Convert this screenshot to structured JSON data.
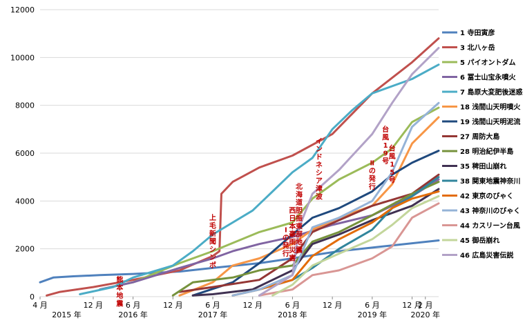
{
  "chart_data": {
    "type": "line",
    "ylim": [
      0,
      12000
    ],
    "yticks": [
      0,
      2000,
      4000,
      6000,
      8000,
      10000,
      12000
    ],
    "xlim": [
      "2015-04",
      "2020-04"
    ],
    "x_tick_labels": [
      {
        "x": "2015-04",
        "label": "4 月"
      },
      {
        "x": "2015-12",
        "label": "12 月"
      },
      {
        "x": "2016-06",
        "label": "6 月"
      },
      {
        "x": "2016-12",
        "label": "12 月"
      },
      {
        "x": "2017-06",
        "label": "6 月"
      },
      {
        "x": "2017-12",
        "label": "12 月"
      },
      {
        "x": "2018-06",
        "label": "6 月"
      },
      {
        "x": "2018-12",
        "label": "12 月"
      },
      {
        "x": "2019-06",
        "label": "6 月"
      },
      {
        "x": "2019-12",
        "label": "12 月"
      },
      {
        "x": "2020-02",
        "label": "2 月"
      }
    ],
    "year_labels": [
      {
        "x": "2015-08",
        "label": "2015 年"
      },
      {
        "x": "2016-06",
        "label": "2016 年"
      },
      {
        "x": "2017-06",
        "label": "2017 年"
      },
      {
        "x": "2018-06",
        "label": "2018 年"
      },
      {
        "x": "2019-06",
        "label": "2019 年"
      },
      {
        "x": "2020-02",
        "label": "2020 年"
      }
    ],
    "grid": "horizontal",
    "legend": "right",
    "series": [
      {
        "name": "1 寺田寅彦",
        "color": "#4f81bd",
        "points": [
          [
            "2015-04",
            600
          ],
          [
            "2015-06",
            800
          ],
          [
            "2015-09",
            850
          ],
          [
            "2016-01",
            900
          ],
          [
            "2016-06",
            950
          ],
          [
            "2017-01",
            1050
          ],
          [
            "2017-06",
            1200
          ],
          [
            "2018-01",
            1400
          ],
          [
            "2018-06",
            1600
          ],
          [
            "2019-01",
            1900
          ],
          [
            "2019-06",
            2050
          ],
          [
            "2020-04",
            2350
          ]
        ]
      },
      {
        "name": "3 北八ヶ岳",
        "color": "#c0504d",
        "points": [
          [
            "2015-05",
            50
          ],
          [
            "2015-07",
            200
          ],
          [
            "2015-12",
            400
          ],
          [
            "2016-06",
            700
          ],
          [
            "2017-01",
            1100
          ],
          [
            "2017-06",
            1700
          ],
          [
            "2017-07",
            1900
          ],
          [
            "2017-07.3",
            4300
          ],
          [
            "2017-09",
            4800
          ],
          [
            "2018-01",
            5400
          ],
          [
            "2018-06",
            5900
          ],
          [
            "2018-12",
            6800
          ],
          [
            "2019-06",
            8500
          ],
          [
            "2019-12",
            9800
          ],
          [
            "2020-04",
            10800
          ]
        ]
      },
      {
        "name": "5 パイオントダム",
        "color": "#9bbb59",
        "points": [
          [
            "2016-01",
            300
          ],
          [
            "2016-06",
            600
          ],
          [
            "2017-01",
            1400
          ],
          [
            "2017-06",
            1900
          ],
          [
            "2018-01",
            2700
          ],
          [
            "2018-06",
            3100
          ],
          [
            "2018-09",
            4100
          ],
          [
            "2019-01",
            4900
          ],
          [
            "2019-06",
            5600
          ],
          [
            "2019-09",
            6200
          ],
          [
            "2019-12",
            7300
          ],
          [
            "2020-04",
            7900
          ]
        ]
      },
      {
        "name": "6 冨士山宝永噴火",
        "color": "#8064a2",
        "points": [
          [
            "2016-01",
            300
          ],
          [
            "2016-06",
            600
          ],
          [
            "2017-01",
            1200
          ],
          [
            "2017-06",
            1600
          ],
          [
            "2017-09",
            1900
          ],
          [
            "2018-01",
            2200
          ],
          [
            "2018-06",
            2500
          ],
          [
            "2018-12",
            3000
          ],
          [
            "2019-06",
            3400
          ],
          [
            "2019-12",
            4200
          ],
          [
            "2020-04",
            4900
          ]
        ]
      },
      {
        "name": "7 島原大変肥後迷惑",
        "color": "#4bacc6",
        "points": [
          [
            "2015-10",
            100
          ],
          [
            "2016-03",
            400
          ],
          [
            "2016-06",
            800
          ],
          [
            "2016-12",
            1300
          ],
          [
            "2017-03",
            1900
          ],
          [
            "2017-06",
            2600
          ],
          [
            "2017-12",
            3600
          ],
          [
            "2018-03",
            4400
          ],
          [
            "2018-06",
            5200
          ],
          [
            "2018-09",
            5800
          ],
          [
            "2018-12",
            7000
          ],
          [
            "2019-03",
            7800
          ],
          [
            "2019-06",
            8500
          ],
          [
            "2019-12",
            9100
          ],
          [
            "2020-04",
            9700
          ]
        ]
      },
      {
        "name": "18 浅間山天明噴火",
        "color": "#f79646",
        "points": [
          [
            "2017-01",
            50
          ],
          [
            "2017-06",
            600
          ],
          [
            "2017-09",
            1300
          ],
          [
            "2018-01",
            1600
          ],
          [
            "2018-06",
            2200
          ],
          [
            "2018-09",
            2800
          ],
          [
            "2019-01",
            3300
          ],
          [
            "2019-06",
            3800
          ],
          [
            "2019-09",
            4700
          ],
          [
            "2019-12",
            6400
          ],
          [
            "2020-04",
            7500
          ]
        ]
      },
      {
        "name": "19 浅間山天明泥流",
        "color": "#1f497d",
        "points": [
          [
            "2017-03",
            50
          ],
          [
            "2017-09",
            600
          ],
          [
            "2018-01",
            1400
          ],
          [
            "2018-06",
            2600
          ],
          [
            "2018-09",
            3300
          ],
          [
            "2019-01",
            3700
          ],
          [
            "2019-06",
            4400
          ],
          [
            "2019-09",
            5100
          ],
          [
            "2019-12",
            5600
          ],
          [
            "2020-04",
            6100
          ]
        ]
      },
      {
        "name": "27 周防大島",
        "color": "#943634",
        "points": [
          [
            "2017-01",
            200
          ],
          [
            "2017-06",
            400
          ],
          [
            "2018-01",
            700
          ],
          [
            "2018-06",
            1600
          ],
          [
            "2018-09",
            2700
          ],
          [
            "2019-01",
            3200
          ],
          [
            "2019-06",
            3800
          ],
          [
            "2019-12",
            4300
          ],
          [
            "2020-04",
            5100
          ]
        ]
      },
      {
        "name": "28 明治紀伊半島",
        "color": "#76923c",
        "points": [
          [
            "2016-12",
            50
          ],
          [
            "2017-03",
            600
          ],
          [
            "2017-09",
            800
          ],
          [
            "2018-01",
            1100
          ],
          [
            "2018-06",
            1300
          ],
          [
            "2018-09",
            2300
          ],
          [
            "2019-01",
            2700
          ],
          [
            "2019-06",
            3400
          ],
          [
            "2019-12",
            4300
          ],
          [
            "2020-04",
            4800
          ]
        ]
      },
      {
        "name": "35 稗田山崩れ",
        "color": "#403152",
        "points": [
          [
            "2017-03",
            50
          ],
          [
            "2017-06",
            100
          ],
          [
            "2017-12",
            300
          ],
          [
            "2018-06",
            1100
          ],
          [
            "2018-09",
            2200
          ],
          [
            "2019-01",
            2600
          ],
          [
            "2019-06",
            3200
          ],
          [
            "2019-12",
            3800
          ],
          [
            "2020-04",
            4500
          ]
        ]
      },
      {
        "name": "38 関東地震神奈川",
        "color": "#31859c",
        "points": [
          [
            "2017-09",
            50
          ],
          [
            "2018-01",
            300
          ],
          [
            "2018-06",
            700
          ],
          [
            "2018-09",
            1200
          ],
          [
            "2019-01",
            2000
          ],
          [
            "2019-06",
            2800
          ],
          [
            "2019-09",
            3700
          ],
          [
            "2019-12",
            4200
          ],
          [
            "2020-04",
            5000
          ]
        ]
      },
      {
        "name": "42 東京のびゃく",
        "color": "#e36c09",
        "points": [
          [
            "2017-09",
            50
          ],
          [
            "2018-01",
            300
          ],
          [
            "2018-06",
            700
          ],
          [
            "2018-09",
            1700
          ],
          [
            "2019-01",
            2400
          ],
          [
            "2019-06",
            3100
          ],
          [
            "2019-09",
            3700
          ],
          [
            "2019-12",
            4100
          ],
          [
            "2020-04",
            4400
          ]
        ]
      },
      {
        "name": "43 神奈川のびゃく",
        "color": "#95b3d7",
        "points": [
          [
            "2017-09",
            50
          ],
          [
            "2018-01",
            300
          ],
          [
            "2018-06",
            900
          ],
          [
            "2018-09",
            2900
          ],
          [
            "2019-01",
            3300
          ],
          [
            "2019-06",
            4000
          ],
          [
            "2019-09",
            5200
          ],
          [
            "2019-12",
            7100
          ],
          [
            "2020-04",
            8100
          ]
        ]
      },
      {
        "name": "44 カスリーン台風",
        "color": "#d99694",
        "points": [
          [
            "2018-01",
            50
          ],
          [
            "2018-06",
            300
          ],
          [
            "2018-09",
            900
          ],
          [
            "2019-01",
            1100
          ],
          [
            "2019-06",
            1600
          ],
          [
            "2019-09",
            2100
          ],
          [
            "2019-12",
            3300
          ],
          [
            "2020-04",
            3900
          ]
        ]
      },
      {
        "name": "45 御岳崩れ",
        "color": "#c3d69b",
        "points": [
          [
            "2018-03",
            50
          ],
          [
            "2018-06",
            500
          ],
          [
            "2018-09",
            1300
          ],
          [
            "2019-01",
            1800
          ],
          [
            "2019-06",
            2400
          ],
          [
            "2019-09",
            3000
          ],
          [
            "2019-12",
            3700
          ],
          [
            "2020-04",
            4200
          ]
        ]
      },
      {
        "name": "46 広島災害伝説",
        "color": "#b2a2c7",
        "points": [
          [
            "2018-01",
            50
          ],
          [
            "2018-06",
            900
          ],
          [
            "2018-07",
            2900
          ],
          [
            "2018-09",
            4300
          ],
          [
            "2019-01",
            5300
          ],
          [
            "2019-06",
            6800
          ],
          [
            "2019-09",
            8100
          ],
          [
            "2019-12",
            9300
          ],
          [
            "2020-04",
            10400
          ]
        ]
      }
    ],
    "annotations": [
      {
        "text": "熊本地震",
        "x": "2016-04",
        "y": 600
      },
      {
        "text": "上毛新聞シンポ",
        "x": "2017-06",
        "y": 3200
      },
      {
        "text": "Ⅰの発行",
        "x": "2018-05",
        "y": 2700
      },
      {
        "text": "西日本豪雨災害",
        "x": "2018-06",
        "y": 3500
      },
      {
        "text": "北海道胆振東部地震",
        "x": "2018-07",
        "y": 4500
      },
      {
        "text": "インドネシア津波",
        "x": "2018-10",
        "y": 6400
      },
      {
        "text": "Ⅱの発行",
        "x": "2019-06",
        "y": 5500
      },
      {
        "text": "台風19号",
        "x": "2019-08",
        "y": 6900
      },
      {
        "text": "台風15号",
        "x": "2019-09",
        "y": 6100
      }
    ]
  }
}
